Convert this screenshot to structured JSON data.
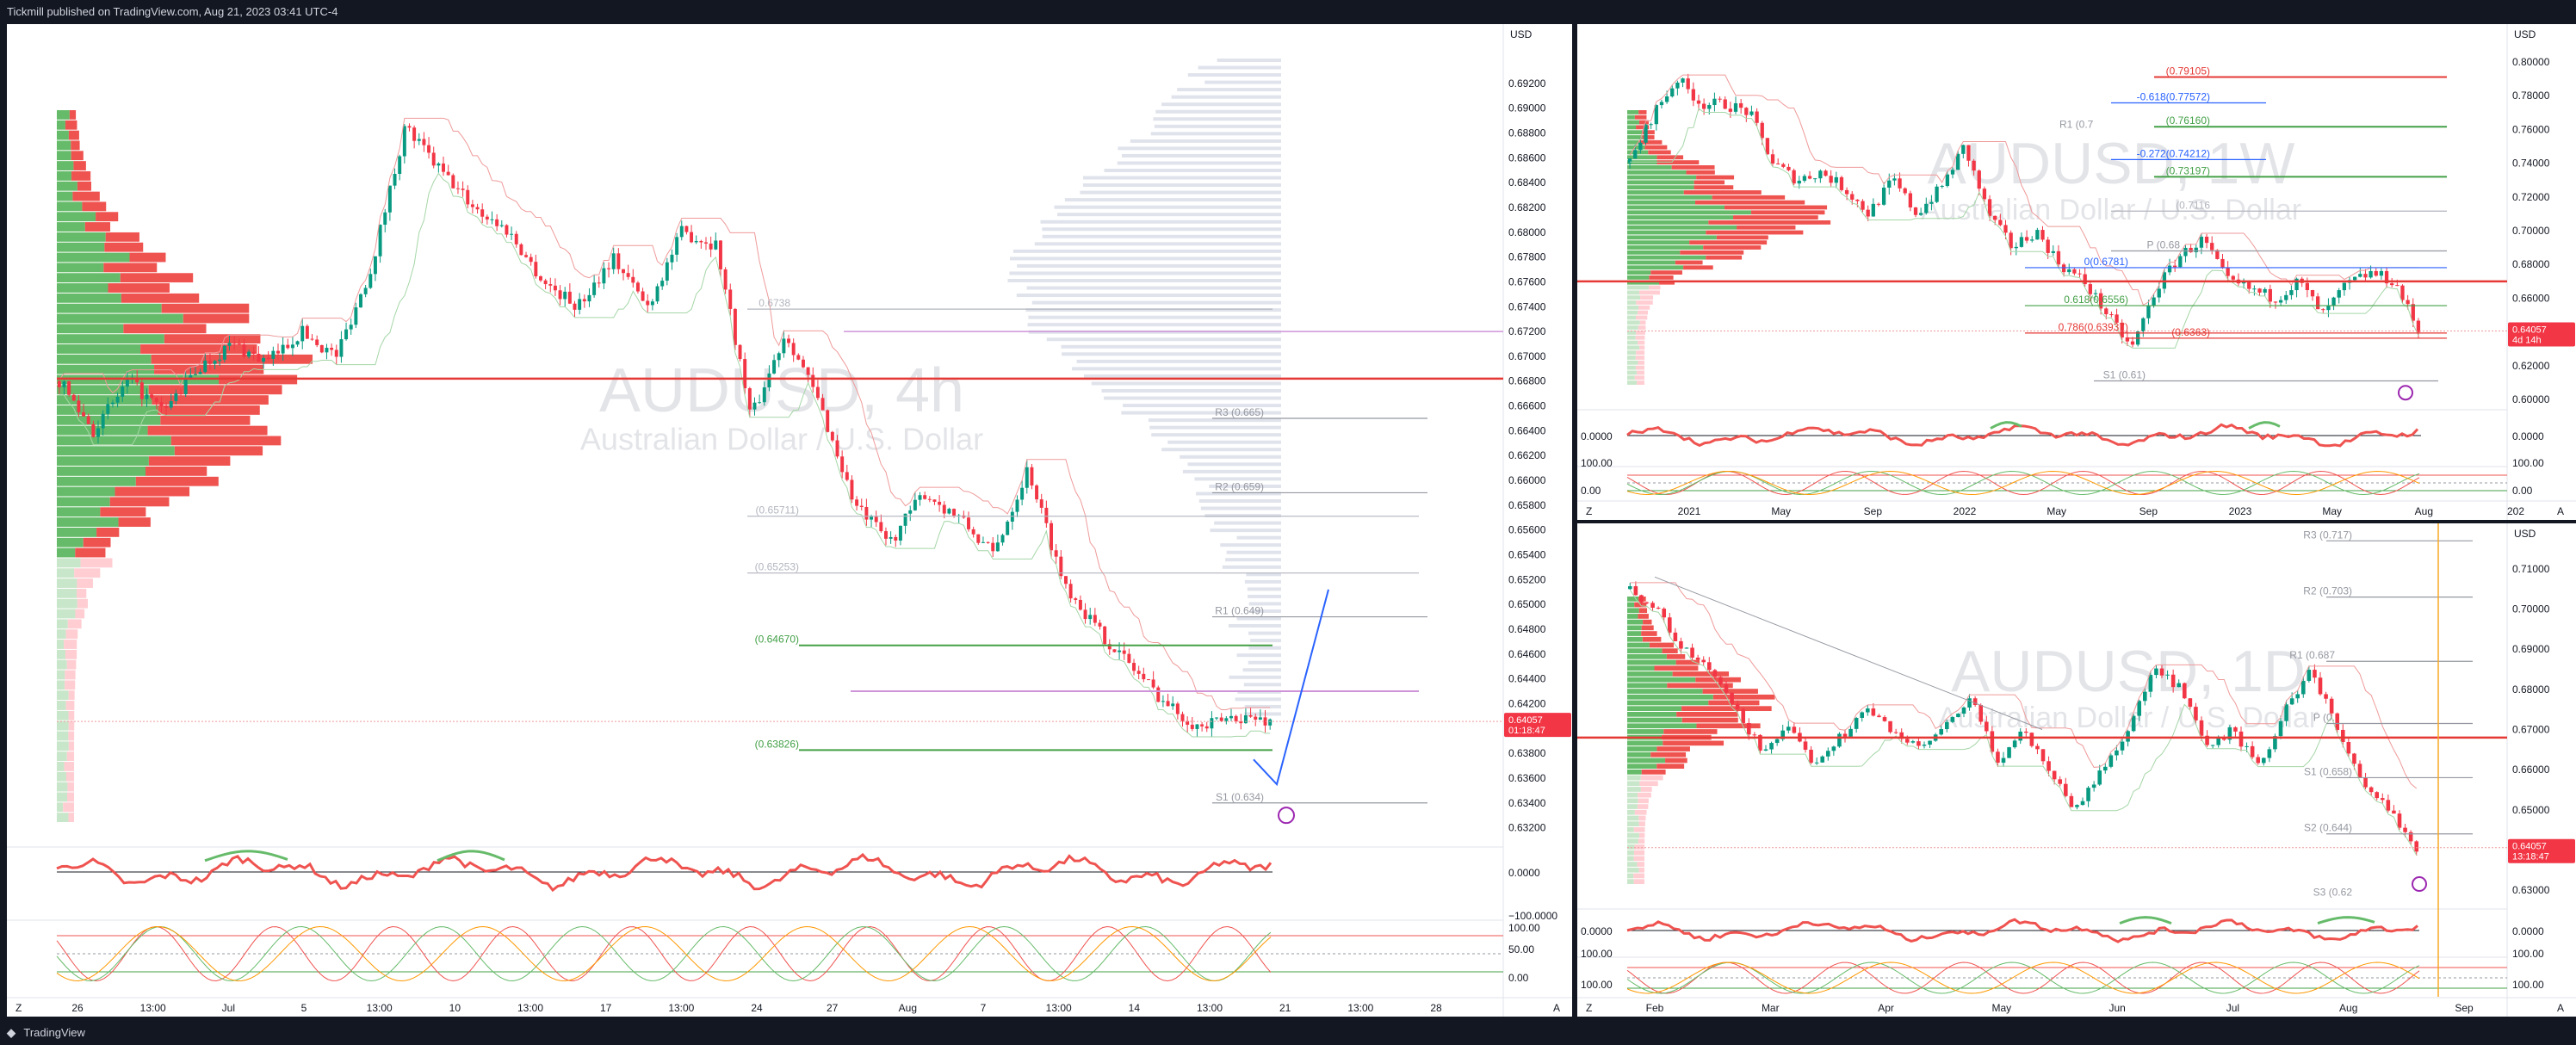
{
  "header": {
    "text": "Tickmill published on TradingView.com, Aug 21, 2023 03:41 UTC-4"
  },
  "footer": {
    "brand": "TradingView",
    "logo_icon": "tradingview-logo-icon"
  },
  "colors": {
    "up": "#26a69a",
    "upbar": "#089981",
    "down": "#f23645",
    "red": "#e53935",
    "green": "#43a047",
    "violet": "#c061ff",
    "orange": "#f9a825",
    "blue": "#2962ff",
    "grey": "#9598a1"
  },
  "panels": {
    "p4h": {
      "currency": "USD",
      "watermark": {
        "symbol": "AUDUSD, 4h",
        "desc": "Australian Dollar / U.S. Dollar"
      },
      "price_label": {
        "price": "0.64057",
        "timer": "01:18:47"
      },
      "osc_ticks": [
        "0.0000",
        "−100.0000",
        "100.00",
        "50.00",
        "0.00"
      ],
      "y_ticks": [
        "0.69200",
        "0.69000",
        "0.68800",
        "0.68600",
        "0.68400",
        "0.68200",
        "0.68000",
        "0.67800",
        "0.67600",
        "0.67400",
        "0.67200",
        "0.67000",
        "0.66800",
        "0.66600",
        "0.66400",
        "0.66200",
        "0.66000",
        "0.65800",
        "0.65600",
        "0.65400",
        "0.65200",
        "0.65000",
        "0.64800",
        "0.64600",
        "0.64400",
        "0.64200",
        "0.64000",
        "0.63800",
        "0.63600",
        "0.63400",
        "0.63200"
      ],
      "x_ticks": [
        "26",
        "13:00",
        "Jul",
        "5",
        "13:00",
        "10",
        "13:00",
        "17",
        "13:00",
        "24",
        "27",
        "Aug",
        "7",
        "13:00",
        "14",
        "13:00",
        "21",
        "13:00",
        "28"
      ],
      "levels": [
        {
          "label": "R3 (0.665)",
          "color": "#9598a1"
        },
        {
          "label": "R2 (0.659)",
          "color": "#9598a1"
        },
        {
          "label": "(0.65711)",
          "color": "#b2b5be"
        },
        {
          "label": "(0.65253)",
          "color": "#b2b5be"
        },
        {
          "label": "R1 (0.649)",
          "color": "#9598a1"
        },
        {
          "label": "(0.64670)",
          "color": "#43a047"
        },
        {
          "label": "(0.63826)",
          "color": "#43a047"
        },
        {
          "label": "S1 (0.634)",
          "color": "#9598a1"
        },
        {
          "label": "0.6738",
          "color": "#b2b5be"
        }
      ],
      "corner_z": "Z",
      "corner_a": "A"
    },
    "p1w": {
      "currency": "USD",
      "watermark": {
        "symbol": "AUDUSD, 1W",
        "desc": "Australian Dollar / U.S. Dollar"
      },
      "price_label": {
        "price": "0.64057",
        "timer": "4d 14h"
      },
      "osc_ticks": [
        "0.0000",
        "100.00",
        "0.00"
      ],
      "y_ticks": [
        "0.80000",
        "0.78000",
        "0.76000",
        "0.74000",
        "0.72000",
        "0.70000",
        "0.68000",
        "0.66000",
        "0.64000",
        "0.62000",
        "0.60000"
      ],
      "x_ticks": [
        "2021",
        "May",
        "Sep",
        "2022",
        "May",
        "Sep",
        "2023",
        "May",
        "Aug",
        "202"
      ],
      "levels": [
        {
          "label": "(0.79105)",
          "color": "#e53935"
        },
        {
          "label": "-0.618(0.77572)",
          "color": "#2962ff"
        },
        {
          "label": "(0.76160)",
          "color": "#43a047"
        },
        {
          "label": "R1 (0.7",
          "color": "#9598a1"
        },
        {
          "label": "-0.272(0.74212)",
          "color": "#2962ff"
        },
        {
          "label": "(0.73197)",
          "color": "#43a047"
        },
        {
          "label": "(0.7116",
          "color": "#b2b5be"
        },
        {
          "label": "P (0.68",
          "color": "#9598a1"
        },
        {
          "label": "0(0.6781)",
          "color": "#2962ff"
        },
        {
          "label": "0.618(0.6556)",
          "color": "#43a047"
        },
        {
          "label": "0.786(0.63937)",
          "color": "#e53935"
        },
        {
          "label": "(0.6363)",
          "color": "#e53935"
        },
        {
          "label": "S1 (0.61)",
          "color": "#9598a1"
        }
      ],
      "corner_z": "Z",
      "corner_a": "A"
    },
    "p1d": {
      "currency": "USD",
      "watermark": {
        "symbol": "AUDUSD, 1D",
        "desc": "Australian Dollar / U.S. Dollar"
      },
      "price_label": {
        "price": "0.64057",
        "timer": "13:18:47"
      },
      "osc_ticks": [
        "0.0000",
        "100.00",
        "100.00"
      ],
      "y_ticks": [
        "0.71000",
        "0.70000",
        "0.69000",
        "0.68000",
        "0.67000",
        "0.66000",
        "0.65000",
        "0.64000",
        "0.63000"
      ],
      "x_ticks": [
        "Feb",
        "Mar",
        "Apr",
        "May",
        "Jun",
        "Jul",
        "Aug",
        "Sep"
      ],
      "levels": [
        {
          "label": "R3 (0.717)",
          "color": "#9598a1"
        },
        {
          "label": "R2 (0.703)",
          "color": "#9598a1"
        },
        {
          "label": "R1 (0.687",
          "color": "#9598a1"
        },
        {
          "label": "P (0.",
          "color": "#9598a1"
        },
        {
          "label": "S1 (0.658)",
          "color": "#9598a1"
        },
        {
          "label": "S2 (0.644)",
          "color": "#9598a1"
        },
        {
          "label": "S3 (0.62",
          "color": "#9598a1"
        }
      ],
      "corner_z": "Z",
      "corner_a": "A"
    }
  },
  "chart_data": [
    {
      "type": "candlestick",
      "title": "AUDUSD, 4h",
      "subtitle": "Australian Dollar / U.S. Dollar",
      "ylabel": "USD",
      "ylim": [
        0.631,
        0.694
      ],
      "x": [
        "26",
        "Jul",
        "5",
        "10",
        "17",
        "24",
        "27",
        "Aug",
        "7",
        "14",
        "21"
      ],
      "close_path": [
        0.668,
        0.664,
        0.668,
        0.6655,
        0.669,
        0.671,
        0.6695,
        0.672,
        0.67,
        0.677,
        0.6885,
        0.685,
        0.682,
        0.68,
        0.676,
        0.674,
        0.678,
        0.674,
        0.68,
        0.679,
        0.665,
        0.672,
        0.666,
        0.658,
        0.655,
        0.659,
        0.657,
        0.654,
        0.661,
        0.652,
        0.648,
        0.645,
        0.642,
        0.64,
        0.641,
        0.6406
      ],
      "levels": {
        "R3": 0.665,
        "R2": 0.659,
        "R1": 0.649,
        "S1": 0.634,
        "hline_green_1": 0.6467,
        "hline_green_2": 0.63826,
        "hline_red": 0.6682,
        "hline_violet": 0.643
      },
      "last_price": 0.64057
    },
    {
      "type": "candlestick",
      "title": "AUDUSD, 1W",
      "subtitle": "Australian Dollar / U.S. Dollar",
      "ylabel": "USD",
      "ylim": [
        0.598,
        0.802
      ],
      "x": [
        "2021",
        "May",
        "Sep",
        "2022",
        "May",
        "Sep",
        "2023",
        "May",
        "Aug"
      ],
      "close_path": [
        0.74,
        0.77,
        0.79,
        0.775,
        0.775,
        0.77,
        0.74,
        0.73,
        0.735,
        0.725,
        0.71,
        0.73,
        0.71,
        0.725,
        0.75,
        0.71,
        0.69,
        0.7,
        0.68,
        0.67,
        0.65,
        0.63,
        0.665,
        0.685,
        0.695,
        0.67,
        0.665,
        0.66,
        0.67,
        0.65,
        0.668,
        0.675,
        0.67,
        0.6406
      ],
      "levels": {
        "fib_-0.618": 0.77572,
        "fib_-0.272": 0.74212,
        "fib_0": 0.6781,
        "fib_0.618": 0.6556,
        "fib_0.786": 0.63937,
        "S1": 0.61,
        "red_top": 0.79105,
        "green_1": 0.7616,
        "green_2": 0.73197,
        "hline_red": 0.67
      },
      "last_price": 0.64057
    },
    {
      "type": "candlestick",
      "title": "AUDUSD, 1D",
      "subtitle": "Australian Dollar / U.S. Dollar",
      "ylabel": "USD",
      "ylim": [
        0.627,
        0.716
      ],
      "x": [
        "Feb",
        "Mar",
        "Apr",
        "May",
        "Jun",
        "Jul",
        "Aug",
        "Sep"
      ],
      "close_path": [
        0.705,
        0.7,
        0.69,
        0.685,
        0.675,
        0.665,
        0.67,
        0.662,
        0.668,
        0.675,
        0.67,
        0.665,
        0.67,
        0.678,
        0.662,
        0.67,
        0.66,
        0.65,
        0.66,
        0.67,
        0.685,
        0.68,
        0.665,
        0.67,
        0.66,
        0.675,
        0.685,
        0.67,
        0.655,
        0.65,
        0.6406
      ],
      "levels": {
        "R3": 0.717,
        "R2": 0.703,
        "R1": 0.687,
        "S1": 0.658,
        "S2": 0.644,
        "hline_red": 0.668
      },
      "last_price": 0.64057
    }
  ]
}
